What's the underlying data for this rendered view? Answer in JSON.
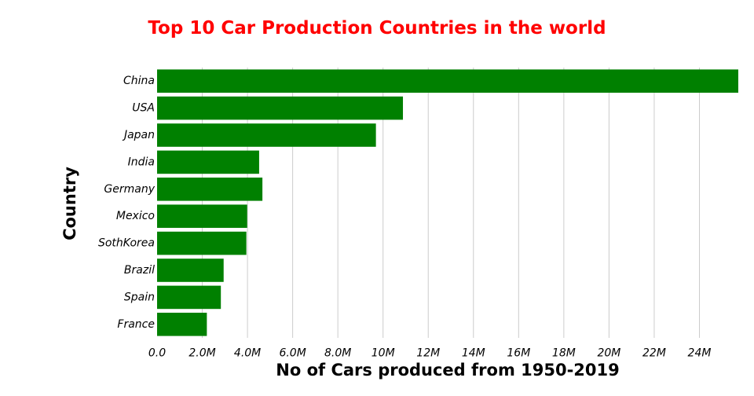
{
  "colors": {
    "bar": "#008000",
    "title": "#ff0000",
    "grid": "#cccccc",
    "background": "#ffffff"
  },
  "chart_data": {
    "type": "bar",
    "orientation": "horizontal",
    "title": "Top 10 Car Production Countries in the world",
    "xlabel": "No of Cars produced from 1950-2019",
    "ylabel": "Country",
    "categories": [
      "China",
      "USA",
      "Japan",
      "India",
      "Germany",
      "Mexico",
      "SothKorea",
      "Brazil",
      "Spain",
      "France"
    ],
    "values": [
      25720665,
      10880019,
      9684507,
      4516017,
      4661328,
      3986794,
      3950617,
      2944988,
      2822355,
      2202460
    ],
    "xlim": [
      0,
      25720665
    ],
    "xticks": [
      0,
      2000000,
      4000000,
      6000000,
      8000000,
      10000000,
      12000000,
      14000000,
      16000000,
      18000000,
      20000000,
      22000000,
      24000000
    ],
    "xtick_labels": [
      "0.0",
      "2.0M",
      "4.0M",
      "6.0M",
      "8.0M",
      "10M",
      "12M",
      "14M",
      "16M",
      "18M",
      "20M",
      "22M",
      "24M"
    ],
    "grid": "vertical",
    "legend": "none"
  }
}
